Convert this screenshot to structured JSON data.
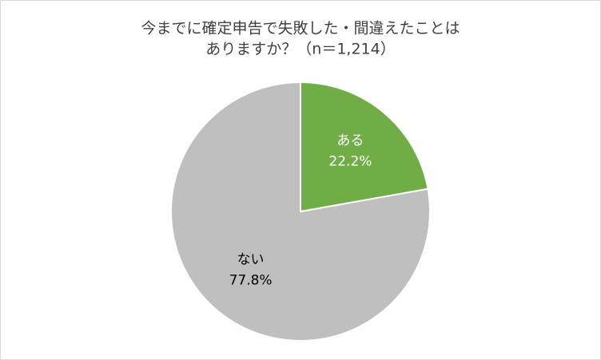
{
  "chart_data": {
    "type": "pie",
    "title_lines": [
      "今までに確定申告で失敗した・間違えたことは",
      "ありますか？（n＝1,214）"
    ],
    "categories": [
      "ある",
      "ない"
    ],
    "values": [
      22.2,
      77.8
    ],
    "value_labels": [
      "22.2%",
      "77.8%"
    ],
    "colors": [
      "#70ad47",
      "#bfbfbf"
    ],
    "label_colors": [
      "#ffffff",
      "#000000"
    ]
  }
}
